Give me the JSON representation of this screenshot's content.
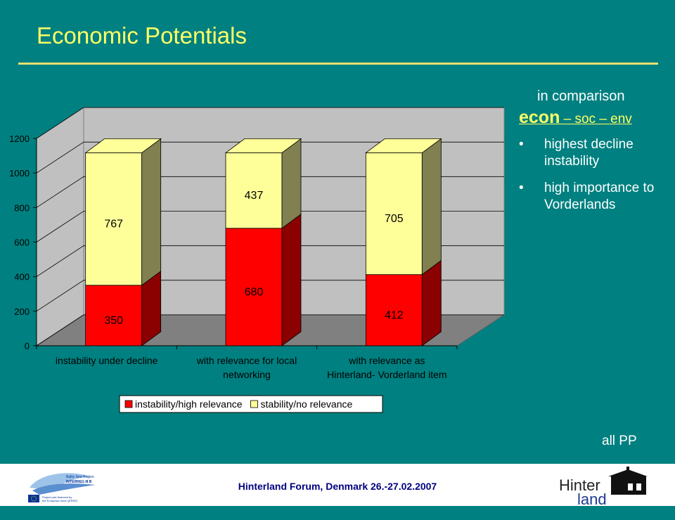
{
  "slide": {
    "title": "Economic Potentials",
    "side": {
      "comparison": "in comparison",
      "econ": "econ",
      "rest": " – soc – env",
      "bullets": [
        "highest decline instability",
        "high importance to Vorderlands"
      ]
    },
    "all_pp": "all PP",
    "footer": "Hinterland Forum, Denmark 26.-27.02.2007",
    "eu_logo_text": [
      "Baltic Sea Region",
      "INTERREG III B",
      "Project part-financed by",
      "the European Union (ERDF)"
    ],
    "hinterland_logo": {
      "line1": "Hinter",
      "line2": "land"
    }
  },
  "colors": {
    "background": "#008080",
    "title": "#ffff66",
    "series_red": "#ff0000",
    "series_yellow": "#ffff99",
    "footer_text": "#000080"
  },
  "chart_data": {
    "type": "bar",
    "stacked": true,
    "three_d": true,
    "categories": [
      [
        "instability under decline"
      ],
      [
        "with relevance for local",
        "networking"
      ],
      [
        "with relevance as",
        "Hinterland- Vorderland item"
      ]
    ],
    "series": [
      {
        "name": "instability/high relevance",
        "values": [
          350,
          680,
          412
        ],
        "color": "#ff0000"
      },
      {
        "name": "stability/no relevance",
        "values": [
          767,
          437,
          705
        ],
        "color": "#ffff99"
      }
    ],
    "yticks": [
      0,
      200,
      400,
      600,
      800,
      1000,
      1200
    ],
    "ylim": [
      0,
      1200
    ],
    "legend_position": "bottom",
    "grid": true
  }
}
